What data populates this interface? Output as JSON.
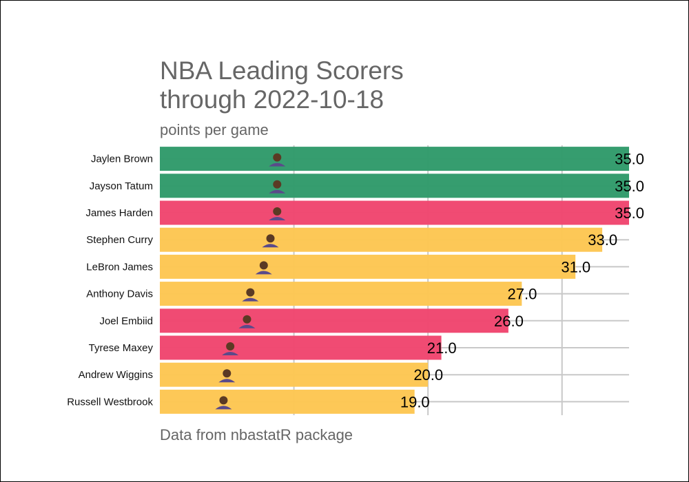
{
  "title_line1": "NBA Leading Scorers",
  "title_line2": "through 2022-10-18",
  "subtitle": "points per game",
  "caption": "Data from nbastatR package",
  "colors": {
    "green": "#2f9a6a",
    "red": "#f0456e",
    "yellow": "#fdc652",
    "grid": "#c8c8c8",
    "text": "#666666"
  },
  "chart_data": {
    "type": "bar",
    "orientation": "horizontal",
    "title": "NBA Leading Scorers through 2022-10-18",
    "subtitle": "points per game",
    "categories": [
      "Jaylen Brown",
      "Jayson Tatum",
      "James Harden",
      "Stephen Curry",
      "LeBron James",
      "Anthony Davis",
      "Joel Embiid",
      "Tyrese Maxey",
      "Andrew Wiggins",
      "Russell Westbrook"
    ],
    "values": [
      35.0,
      35.0,
      35.0,
      33.0,
      31.0,
      27.0,
      26.0,
      21.0,
      20.0,
      19.0
    ],
    "labels": [
      "35.0",
      "35.0",
      "35.0",
      "33.0",
      "31.0",
      "27.0",
      "26.0",
      "21.0",
      "20.0",
      "19.0"
    ],
    "bar_colors": [
      "green",
      "green",
      "red",
      "yellow",
      "yellow",
      "yellow",
      "red",
      "red",
      "yellow",
      "yellow"
    ],
    "xlim": [
      0,
      35
    ],
    "grid": true,
    "player_headshot_icons": true
  }
}
